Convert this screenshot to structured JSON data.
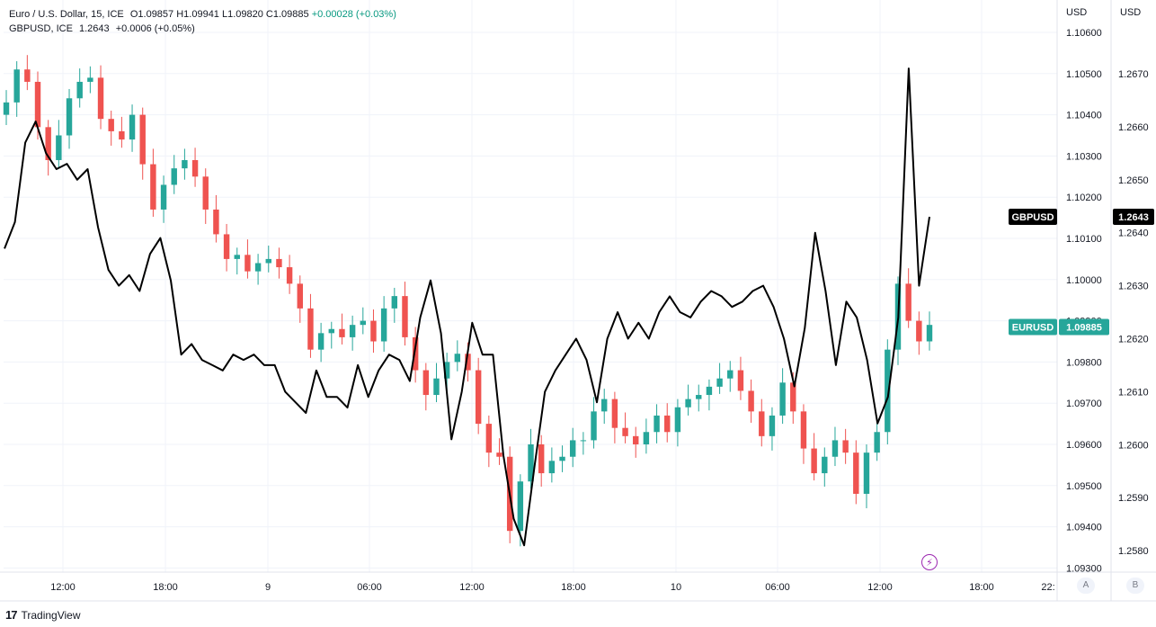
{
  "legend": {
    "row1": {
      "symbol": "Euro / U.S. Dollar, 15, ICE",
      "ohlc": "O1.09857  H1.09941  L1.09820  C1.09885",
      "change": "+0.00028 (+0.03%)"
    },
    "row2": {
      "symbol": "GBPUSD, ICE",
      "value": "1.2643",
      "change": "+0.0006 (+0.05%)"
    }
  },
  "axes": {
    "left_currency": "USD",
    "right_currency": "USD",
    "left_ticks": [
      "1.10600",
      "1.10500",
      "1.10400",
      "1.10300",
      "1.10200",
      "1.10100",
      "1.10000",
      "1.09900",
      "1.09800",
      "1.09700",
      "1.09600",
      "1.09500",
      "1.09400",
      "1.09300"
    ],
    "right_ticks": [
      "1.2670",
      "1.2660",
      "1.2650",
      "1.2640",
      "1.2630",
      "1.2620",
      "1.2610",
      "1.2600",
      "1.2590",
      "1.2580"
    ],
    "time_ticks": [
      "12:00",
      "18:00",
      "9",
      "06:00",
      "12:00",
      "18:00",
      "10",
      "06:00",
      "12:00",
      "18:00",
      "22:"
    ]
  },
  "price_labels": {
    "gbpusd": {
      "name": "GBPUSD",
      "value": "1.2643"
    },
    "eurusd": {
      "name": "EURUSD",
      "value": "1.09885"
    }
  },
  "scale_buttons": [
    "A",
    "B"
  ],
  "brand": "TradingView",
  "colors": {
    "up": "#26a69a",
    "down": "#ef5350",
    "line": "#000000",
    "eur_label": "#26a69a",
    "gbp_label": "#000000",
    "grid": "#f0f3fa"
  },
  "icons": [
    "tradingview-logo-icon",
    "lightning-icon"
  ],
  "chart_data": {
    "type": "line",
    "title": "Euro / U.S. Dollar, 15, ICE",
    "timeframe": "15",
    "x_labels": [
      "12:00",
      "18:00",
      "9",
      "06:00",
      "12:00",
      "18:00",
      "10",
      "06:00",
      "12:00",
      "18:00"
    ],
    "eurusd": {
      "name": "EURUSD",
      "ylim": [
        1.0929,
        1.1063
      ],
      "close_path": [
        1.1043,
        1.1051,
        1.1048,
        1.1037,
        1.1029,
        1.1035,
        1.1044,
        1.1048,
        1.1049,
        1.1039,
        1.1036,
        1.1034,
        1.104,
        1.1028,
        1.1017,
        1.1023,
        1.1027,
        1.1029,
        1.1025,
        1.1017,
        1.1011,
        1.1005,
        1.1006,
        1.1002,
        1.1004,
        1.1005,
        1.1003,
        1.0999,
        1.0993,
        1.0983,
        1.0987,
        1.0988,
        1.0986,
        1.0989,
        1.099,
        1.0985,
        1.0993,
        1.0996,
        1.0986,
        1.0978,
        1.0972,
        1.0976,
        1.098,
        1.0982,
        1.0978,
        1.0965,
        1.0958,
        1.0957,
        1.0939,
        1.0951,
        1.096,
        1.0953,
        1.0956,
        1.0957,
        1.0961,
        1.0961,
        1.0968,
        1.0971,
        1.0964,
        1.0962,
        1.096,
        1.0963,
        1.0967,
        1.0963,
        1.0969,
        1.0971,
        1.0972,
        1.0974,
        1.0976,
        1.0978,
        1.0973,
        1.0968,
        1.0962,
        1.0967,
        1.0975,
        1.0968,
        1.0959,
        1.0953,
        1.0957,
        1.0961,
        1.0958,
        1.0948,
        1.0958,
        1.0963,
        1.0983,
        1.0999,
        1.099,
        1.0985,
        1.0989
      ],
      "last": 1.09885
    },
    "gbpusd": {
      "name": "GBPUSD",
      "ylim": [
        1.2577,
        1.2683
      ],
      "close_path": [
        1.2637,
        1.2642,
        1.2657,
        1.2661,
        1.2655,
        1.2652,
        1.2653,
        1.265,
        1.2652,
        1.2641,
        1.2633,
        1.263,
        1.2632,
        1.2629,
        1.2636,
        1.2639,
        1.2631,
        1.2617,
        1.2619,
        1.2616,
        1.2615,
        1.2614,
        1.2617,
        1.2616,
        1.2617,
        1.2615,
        1.2615,
        1.261,
        1.2608,
        1.2606,
        1.2614,
        1.2609,
        1.2609,
        1.2607,
        1.2615,
        1.2609,
        1.2614,
        1.2617,
        1.2616,
        1.2612,
        1.2624,
        1.2631,
        1.2621,
        1.2601,
        1.261,
        1.2623,
        1.2617,
        1.2617,
        1.2598,
        1.2586,
        1.2581,
        1.2596,
        1.261,
        1.2614,
        1.2617,
        1.262,
        1.2616,
        1.2608,
        1.262,
        1.2625,
        1.262,
        1.2623,
        1.262,
        1.2625,
        1.2628,
        1.2625,
        1.2624,
        1.2627,
        1.2629,
        1.2628,
        1.2626,
        1.2627,
        1.2629,
        1.263,
        1.2626,
        1.262,
        1.2611,
        1.2622,
        1.264,
        1.2629,
        1.2615,
        1.2627,
        1.2624,
        1.2616,
        1.2604,
        1.2609,
        1.2624,
        1.2671,
        1.263,
        1.2643
      ],
      "last": 1.2643
    }
  }
}
